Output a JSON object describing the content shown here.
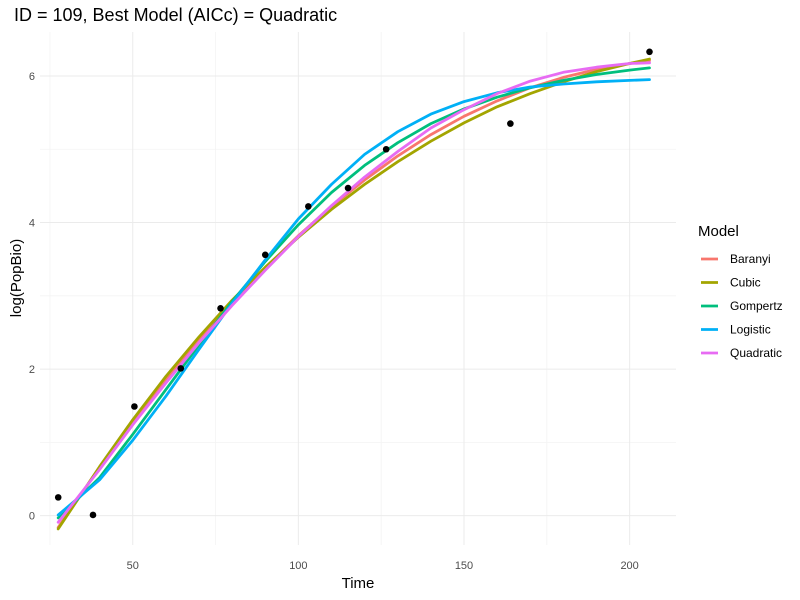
{
  "chart_data": {
    "type": "line",
    "title": "ID = 109, Best Model (AICc) = Quadratic",
    "xlabel": "Time",
    "ylabel": "log(PopBio)",
    "xlim": [
      22,
      214
    ],
    "ylim": [
      -0.4,
      6.6
    ],
    "x_ticks": [
      50,
      100,
      150,
      200
    ],
    "x_tick_labels": [
      "50",
      "100",
      "150",
      "200"
    ],
    "y_ticks": [
      0,
      2,
      4,
      6
    ],
    "y_tick_labels": [
      "0",
      "2",
      "4",
      "6"
    ],
    "grid": true,
    "legend": {
      "title": "Model",
      "placement": "right"
    },
    "points": {
      "x": [
        27.5,
        38,
        50.5,
        64.5,
        76.5,
        90,
        103,
        115,
        126.5,
        164,
        206
      ],
      "y": [
        0.25,
        0.01,
        1.49,
        2.01,
        2.83,
        3.56,
        4.22,
        4.47,
        5.0,
        5.35,
        6.33
      ]
    },
    "series": [
      {
        "name": "Baranyi",
        "color": "#F8766D",
        "x": [
          27.5,
          40,
          50,
          60,
          70,
          80,
          90,
          100,
          110,
          120,
          130,
          140,
          150,
          160,
          170,
          180,
          190,
          200,
          206
        ],
        "y": [
          -0.16,
          0.66,
          1.28,
          1.86,
          2.4,
          2.91,
          3.38,
          3.82,
          4.22,
          4.58,
          4.91,
          5.2,
          5.45,
          5.66,
          5.84,
          5.98,
          6.09,
          6.17,
          6.21
        ]
      },
      {
        "name": "Cubic",
        "color": "#A3A500",
        "x": [
          27.5,
          40,
          50,
          60,
          70,
          80,
          90,
          100,
          110,
          120,
          130,
          140,
          150,
          160,
          170,
          180,
          190,
          200,
          206
        ],
        "y": [
          -0.18,
          0.67,
          1.31,
          1.9,
          2.44,
          2.94,
          3.39,
          3.8,
          4.18,
          4.52,
          4.83,
          5.11,
          5.36,
          5.58,
          5.76,
          5.92,
          6.06,
          6.17,
          6.23
        ]
      },
      {
        "name": "Gompertz",
        "color": "#00BF7D",
        "x": [
          27.5,
          40,
          50,
          60,
          70,
          80,
          90,
          100,
          110,
          120,
          130,
          140,
          150,
          160,
          170,
          180,
          190,
          200,
          206
        ],
        "y": [
          -0.03,
          0.52,
          1.11,
          1.72,
          2.33,
          2.92,
          3.47,
          3.97,
          4.41,
          4.78,
          5.09,
          5.35,
          5.55,
          5.71,
          5.84,
          5.94,
          6.02,
          6.08,
          6.11
        ]
      },
      {
        "name": "Logistic",
        "color": "#00B0F6",
        "x": [
          27.5,
          40,
          50,
          60,
          70,
          80,
          90,
          100,
          110,
          120,
          130,
          140,
          150,
          160,
          170,
          180,
          190,
          200,
          206
        ],
        "y": [
          0.01,
          0.49,
          1.03,
          1.63,
          2.27,
          2.9,
          3.49,
          4.05,
          4.52,
          4.93,
          5.24,
          5.48,
          5.65,
          5.77,
          5.85,
          5.89,
          5.92,
          5.94,
          5.95
        ]
      },
      {
        "name": "Quadratic",
        "color": "#E76BF3",
        "x": [
          27.5,
          40,
          50,
          60,
          70,
          80,
          90,
          100,
          110,
          120,
          130,
          140,
          150,
          160,
          170,
          180,
          190,
          200,
          206
        ],
        "y": [
          -0.09,
          0.63,
          1.24,
          1.81,
          2.36,
          2.87,
          3.35,
          3.81,
          4.23,
          4.62,
          4.97,
          5.29,
          5.54,
          5.76,
          5.93,
          6.05,
          6.12,
          6.17,
          6.18
        ]
      }
    ]
  }
}
